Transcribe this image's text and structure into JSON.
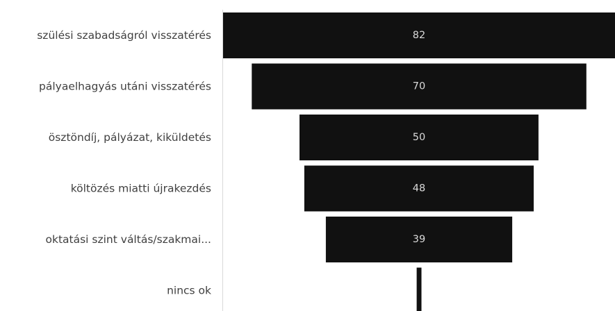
{
  "chart_data": {
    "type": "bar",
    "subtype": "funnel",
    "title": "",
    "xlabel": "",
    "ylabel": "",
    "grid": false,
    "legend": "none",
    "bar_color": "#111111",
    "value_label_color": "#d9d9d9",
    "axis_color": "#d9d9d9",
    "categories": [
      "szülési szabadságról visszatérés",
      "pályaelhagyás utáni visszatérés",
      "ösztöndíj, pályázat, kiküldetés",
      "költözés miatti újrakezdés",
      "oktatási szint váltás/szakmai...",
      "nincs ok"
    ],
    "values": [
      82,
      70,
      50,
      48,
      39,
      1
    ],
    "value_labels": [
      "82",
      "70",
      "50",
      "48",
      "39",
      ""
    ]
  }
}
